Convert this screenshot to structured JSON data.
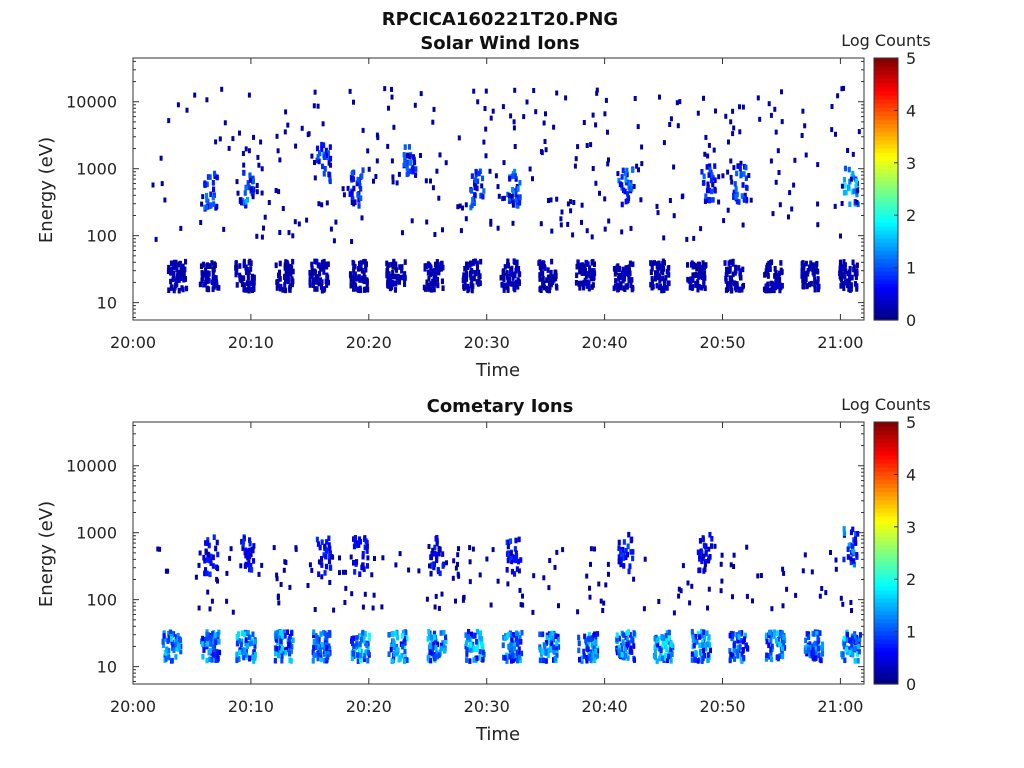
{
  "figure": {
    "title": "RPCICA160221T20.PNG"
  },
  "chart_data": [
    {
      "type": "heatmap",
      "title": "Solar Wind Ions",
      "xlabel": "Time",
      "ylabel": "Energy (eV)",
      "x_tick_labels": [
        "20:00",
        "20:10",
        "20:20",
        "20:30",
        "20:40",
        "20:50",
        "21:00"
      ],
      "x_ticks_min": [
        0,
        10,
        20,
        30,
        40,
        50,
        60
      ],
      "xlim_min": [
        0,
        62
      ],
      "y_scale": "log",
      "y_tick_labels": [
        "10",
        "100",
        "1000",
        "10000"
      ],
      "y_ticks": [
        10,
        100,
        1000,
        10000
      ],
      "ylim": [
        5.5,
        45000
      ],
      "colorbar": {
        "label": "Log Counts",
        "ticks": [
          "0",
          "1",
          "2",
          "3",
          "4",
          "5"
        ],
        "range": [
          0,
          5
        ],
        "colormap": "jet"
      },
      "clusters": [
        {
          "t": 3.8,
          "e": 25,
          "c": 0.3
        },
        {
          "t": 6.5,
          "e": 25,
          "c": 0.3
        },
        {
          "t": 9.5,
          "e": 25,
          "c": 0.3
        },
        {
          "t": 12.8,
          "e": 25,
          "c": 0.3
        },
        {
          "t": 15.8,
          "e": 25,
          "c": 0.3
        },
        {
          "t": 19.2,
          "e": 25,
          "c": 0.3
        },
        {
          "t": 22.3,
          "e": 25,
          "c": 0.3
        },
        {
          "t": 25.5,
          "e": 25,
          "c": 0.3
        },
        {
          "t": 28.7,
          "e": 25,
          "c": 0.3
        },
        {
          "t": 32.0,
          "e": 25,
          "c": 0.3
        },
        {
          "t": 35.2,
          "e": 25,
          "c": 0.3
        },
        {
          "t": 38.4,
          "e": 25,
          "c": 0.3
        },
        {
          "t": 41.6,
          "e": 25,
          "c": 0.3
        },
        {
          "t": 44.7,
          "e": 25,
          "c": 0.3
        },
        {
          "t": 47.8,
          "e": 25,
          "c": 0.3
        },
        {
          "t": 51.0,
          "e": 25,
          "c": 0.3
        },
        {
          "t": 54.3,
          "e": 25,
          "c": 0.3
        },
        {
          "t": 57.5,
          "e": 25,
          "c": 0.3
        },
        {
          "t": 60.7,
          "e": 25,
          "c": 0.3
        },
        {
          "t": 6.6,
          "e": 450,
          "c": 1.0
        },
        {
          "t": 9.7,
          "e": 480,
          "c": 1.3
        },
        {
          "t": 16.2,
          "e": 1200,
          "c": 1.0
        },
        {
          "t": 19.0,
          "e": 500,
          "c": 0.9
        },
        {
          "t": 23.5,
          "e": 1200,
          "c": 1.0
        },
        {
          "t": 29.2,
          "e": 500,
          "c": 1.0
        },
        {
          "t": 32.3,
          "e": 500,
          "c": 1.1
        },
        {
          "t": 41.8,
          "e": 550,
          "c": 1.1
        },
        {
          "t": 48.8,
          "e": 600,
          "c": 0.9
        },
        {
          "t": 51.5,
          "e": 600,
          "c": 1.0
        },
        {
          "t": 60.9,
          "e": 550,
          "c": 1.6
        }
      ]
    },
    {
      "type": "heatmap",
      "title": "Cometary Ions",
      "xlabel": "Time",
      "ylabel": "Energy (eV)",
      "x_tick_labels": [
        "20:00",
        "20:10",
        "20:20",
        "20:30",
        "20:40",
        "20:50",
        "21:00"
      ],
      "x_ticks_min": [
        0,
        10,
        20,
        30,
        40,
        50,
        60
      ],
      "xlim_min": [
        0,
        62
      ],
      "y_scale": "log",
      "y_tick_labels": [
        "10",
        "100",
        "1000",
        "10000"
      ],
      "y_ticks": [
        10,
        100,
        1000,
        10000
      ],
      "ylim": [
        5.5,
        45000
      ],
      "colorbar": {
        "label": "Log Counts",
        "ticks": [
          "0",
          "1",
          "2",
          "3",
          "4",
          "5"
        ],
        "range": [
          0,
          5
        ],
        "colormap": "jet"
      },
      "clusters": [
        {
          "t": 3.3,
          "e": 20,
          "c": 1.4
        },
        {
          "t": 6.6,
          "e": 20,
          "c": 1.3
        },
        {
          "t": 9.6,
          "e": 20,
          "c": 1.5
        },
        {
          "t": 12.8,
          "e": 20,
          "c": 1.4
        },
        {
          "t": 16.0,
          "e": 20,
          "c": 1.3
        },
        {
          "t": 19.3,
          "e": 20,
          "c": 1.6
        },
        {
          "t": 22.5,
          "e": 20,
          "c": 1.5
        },
        {
          "t": 25.8,
          "e": 20,
          "c": 1.4
        },
        {
          "t": 29.0,
          "e": 20,
          "c": 1.5
        },
        {
          "t": 32.2,
          "e": 20,
          "c": 1.4
        },
        {
          "t": 35.3,
          "e": 20,
          "c": 1.4
        },
        {
          "t": 38.6,
          "e": 20,
          "c": 1.5
        },
        {
          "t": 41.8,
          "e": 20,
          "c": 1.5
        },
        {
          "t": 45.0,
          "e": 20,
          "c": 1.6
        },
        {
          "t": 48.2,
          "e": 20,
          "c": 1.5
        },
        {
          "t": 51.4,
          "e": 20,
          "c": 1.3
        },
        {
          "t": 54.5,
          "e": 20,
          "c": 1.4
        },
        {
          "t": 57.8,
          "e": 20,
          "c": 1.3
        },
        {
          "t": 60.9,
          "e": 20,
          "c": 1.5
        },
        {
          "t": 6.6,
          "e": 450,
          "c": 0.7
        },
        {
          "t": 9.7,
          "e": 450,
          "c": 0.7
        },
        {
          "t": 16.2,
          "e": 450,
          "c": 0.7
        },
        {
          "t": 19.3,
          "e": 450,
          "c": 0.7
        },
        {
          "t": 25.8,
          "e": 450,
          "c": 0.7
        },
        {
          "t": 32.3,
          "e": 450,
          "c": 0.8
        },
        {
          "t": 41.8,
          "e": 500,
          "c": 0.8
        },
        {
          "t": 48.5,
          "e": 500,
          "c": 0.7
        },
        {
          "t": 60.9,
          "e": 600,
          "c": 1.2
        }
      ]
    }
  ]
}
